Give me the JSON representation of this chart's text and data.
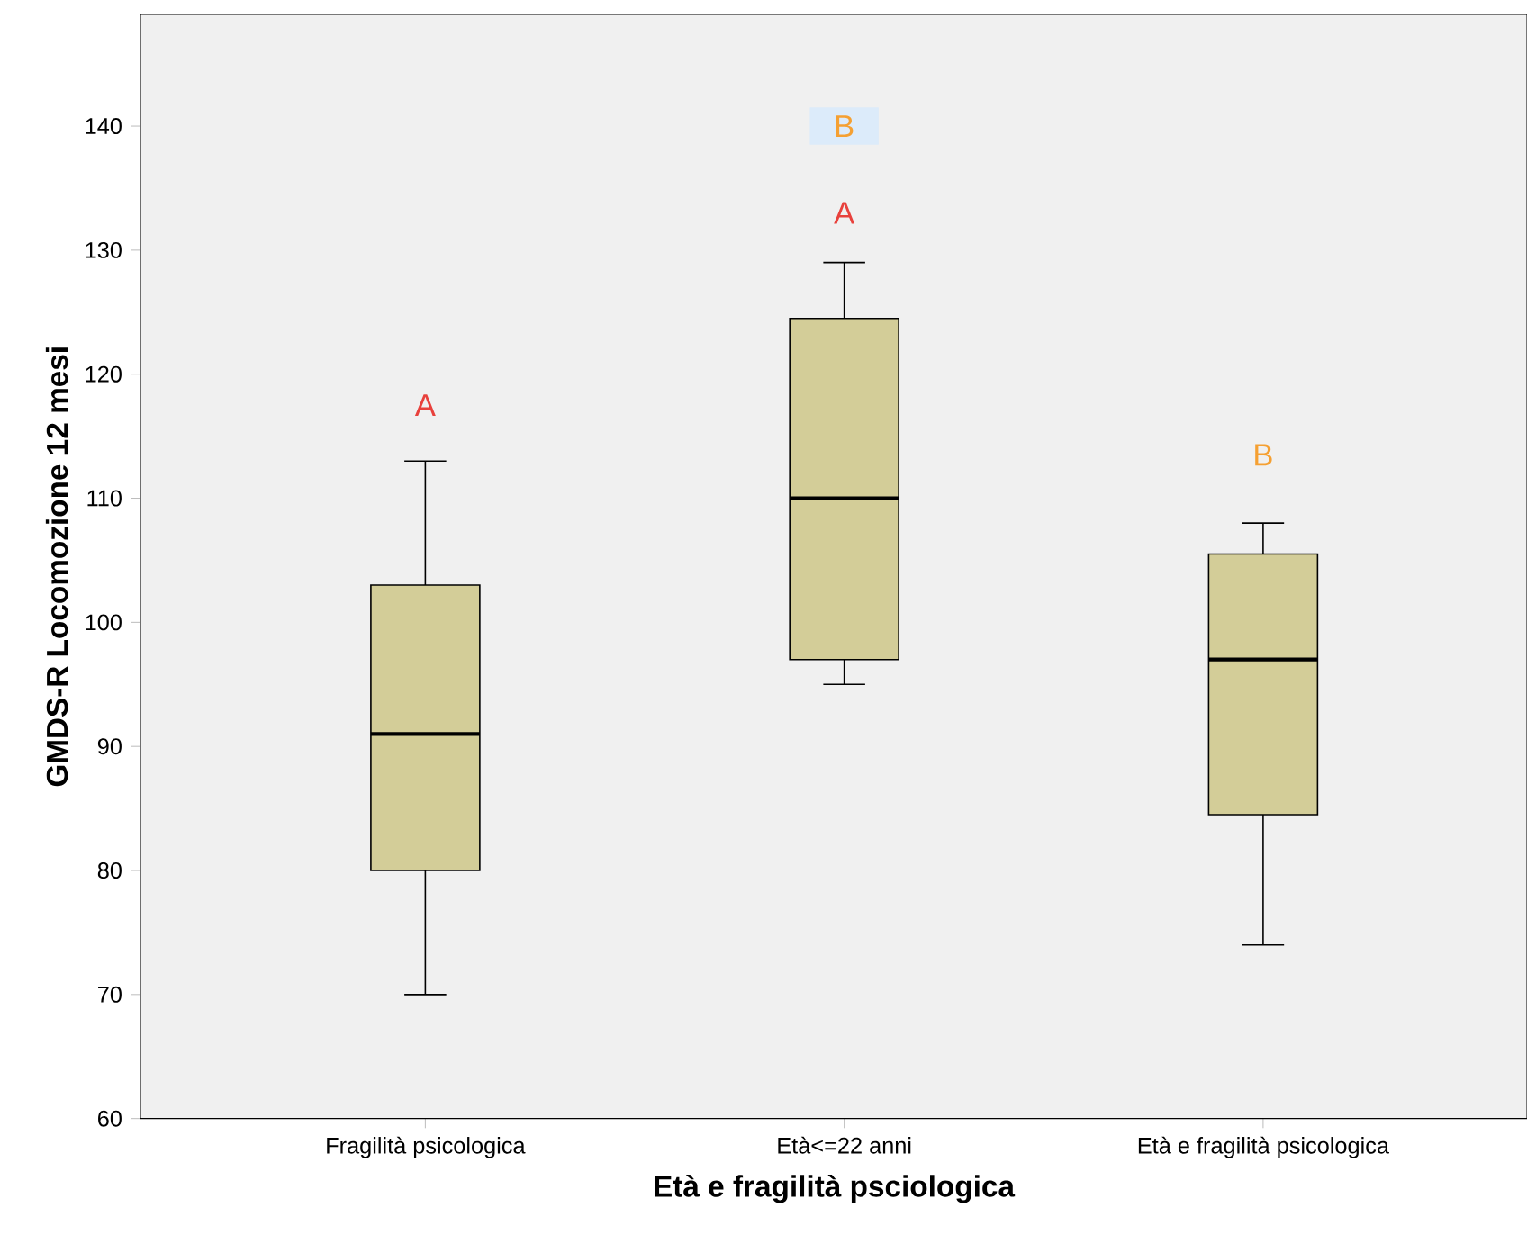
{
  "chart_data": {
    "type": "box",
    "xlabel": "Età e fragilità psciologica",
    "ylabel": "GMDS-R Locomozione 12 mesi",
    "categories": [
      "Fragilità psicologica",
      "Età<=22 anni",
      "Età e fragilità psicologica"
    ],
    "color": "#d3cd98",
    "boxes": [
      {
        "low": 70,
        "q1": 80,
        "median": 91,
        "q3": 103,
        "high": 113
      },
      {
        "low": 95,
        "q1": 97,
        "median": 110,
        "q3": 124.5,
        "high": 129
      },
      {
        "low": 74,
        "q1": 84.5,
        "median": 97,
        "q3": 105.5,
        "high": 108
      }
    ],
    "ylim": [
      60,
      149
    ],
    "yticks": [
      60,
      70,
      80,
      90,
      100,
      110,
      120,
      130,
      140
    ],
    "grid": false,
    "annotations": [
      "A",
      "A",
      "B",
      "B"
    ]
  }
}
